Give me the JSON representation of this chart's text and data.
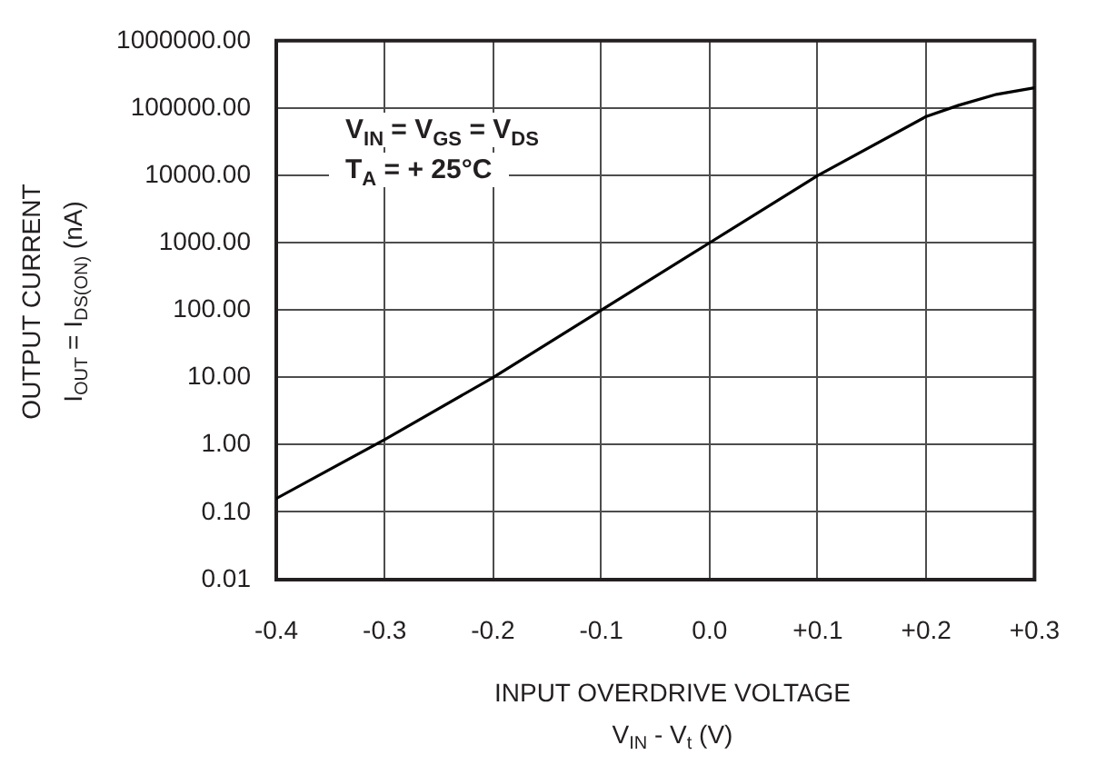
{
  "chart_data": {
    "type": "line",
    "xlabel": "INPUT OVERDRIVE VOLTAGE\nV$_{IN}$ - V$_{t}$ (V)",
    "ylabel": "OUTPUT CURRENT\nI$_{OUT}$ = I$_{DS(ON)}$ (nA)",
    "annotations": [
      "V$_{IN}$ = V$_{GS}$ = V$_{DS}$",
      "T$_{A}$ = + 25°C"
    ],
    "x": [
      -0.4,
      -0.3,
      -0.2,
      -0.1,
      0,
      0.1,
      0.2,
      0.23,
      0.265,
      0.3
    ],
    "series": [
      {
        "color": "#000000",
        "values": [
          0.16,
          1.2,
          10,
          100,
          1000,
          10000,
          75000,
          110000,
          160000,
          200000
        ]
      }
    ],
    "xlim": [
      -0.4,
      0.3
    ],
    "xticks": [
      -0.4,
      -0.3,
      -0.2,
      -0.1,
      {
        "value": 0,
        "label": "0.0"
      },
      {
        "value": 0.1,
        "label": "+0.1"
      },
      {
        "value": 0.2,
        "label": "+0.2"
      },
      {
        "value": 0.3,
        "label": "+0.3"
      }
    ],
    "ylim": [
      0.01,
      1000000
    ],
    "yticks": [
      0.01,
      {
        "value": 0.1,
        "label": "0.10"
      },
      {
        "value": 1,
        "label": "1.00"
      },
      {
        "value": 10,
        "label": "10.00"
      },
      {
        "value": 100,
        "label": "100.00"
      },
      {
        "value": 1000,
        "label": "1000.00"
      },
      {
        "value": 10000,
        "label": "10000.00"
      },
      {
        "value": 100000,
        "label": "100000.00"
      },
      {
        "value": 1000000,
        "label": "1000000.00"
      }
    ],
    "log": "y",
    "grid": true,
    "marker": "none",
    "line_style": "solid"
  }
}
